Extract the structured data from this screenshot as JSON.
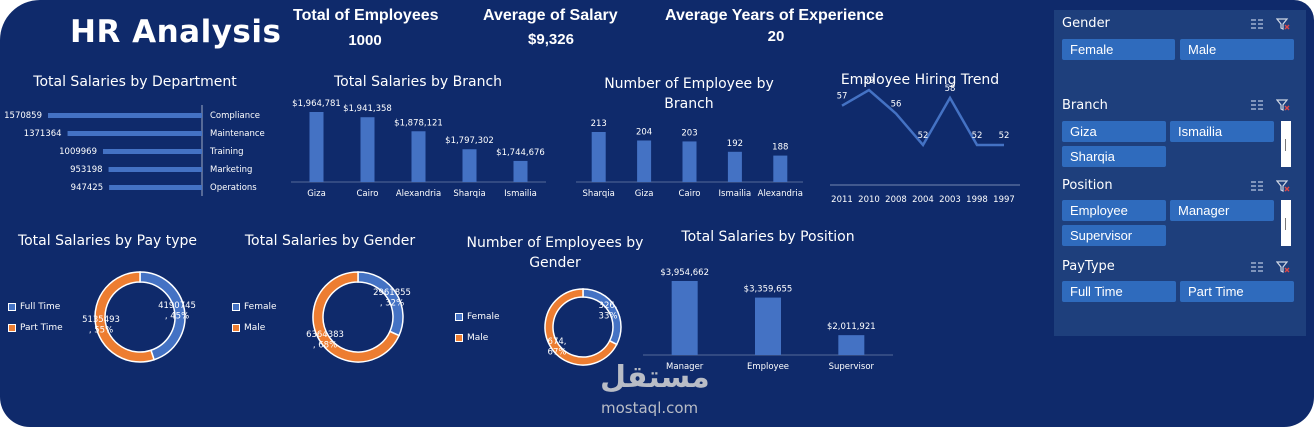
{
  "dashboard": {
    "title": "HR Analysis"
  },
  "kpis": [
    {
      "label": "Total of Employees",
      "value": "1000"
    },
    {
      "label": "Average of Salary",
      "value": "$9,326"
    },
    {
      "label": "Average Years of Experience",
      "value": "20"
    }
  ],
  "chart_data": [
    {
      "id": "dept",
      "type": "bar",
      "orientation": "horizontal",
      "title": "Total Salaries by Department",
      "categories": [
        "Compliance",
        "Maintenance",
        "Training",
        "Marketing",
        "Operations"
      ],
      "values": [
        1570859,
        1371364,
        1009969,
        953198,
        947425
      ],
      "labels": [
        "1570859",
        "1371364",
        "1009969",
        "953198",
        "947425"
      ]
    },
    {
      "id": "branch_sal",
      "type": "bar",
      "title": "Total Salaries by Branch",
      "categories": [
        "Giza",
        "Cairo",
        "Alexandria",
        "Sharqia",
        "Ismailia"
      ],
      "values": [
        1964781,
        1941358,
        1878121,
        1797302,
        1744676
      ],
      "labels": [
        "$1,964,781",
        "$1,941,358",
        "$1,878,121",
        "$1,797,302",
        "$1,744,676"
      ]
    },
    {
      "id": "branch_emp",
      "type": "bar",
      "title": "Number of Employee by Branch",
      "categories": [
        "Sharqia",
        "Giza",
        "Cairo",
        "Ismailia",
        "Alexandria"
      ],
      "values": [
        213,
        204,
        203,
        192,
        188
      ],
      "labels": [
        "213",
        "204",
        "203",
        "192",
        "188"
      ]
    },
    {
      "id": "hiring",
      "type": "line",
      "title": "Employee Hiring Trend",
      "categories": [
        "2011",
        "2010",
        "2008",
        "2004",
        "2003",
        "1998",
        "1997"
      ],
      "values": [
        57,
        59,
        56,
        52,
        58,
        52,
        52
      ],
      "labels": [
        "57",
        "59",
        "56",
        "52",
        "58",
        "52",
        "52"
      ]
    },
    {
      "id": "paytype",
      "type": "pie",
      "donut": true,
      "title": "Total Salaries by Pay type",
      "categories": [
        "Full Time",
        "Part Time"
      ],
      "values": [
        4190745,
        5135493
      ],
      "labels": [
        "4190745\n, 45%",
        "5135493\n, 55%"
      ]
    },
    {
      "id": "gender_sal",
      "type": "pie",
      "donut": true,
      "title": "Total Salaries by Gender",
      "categories": [
        "Female",
        "Male"
      ],
      "values": [
        2961855,
        6364383
      ],
      "labels": [
        "2961855\n, 32%",
        "6364383\n, 68%"
      ]
    },
    {
      "id": "gender_emp",
      "type": "pie",
      "donut": true,
      "title": "Number of Employees by Gender",
      "categories": [
        "Female",
        "Male"
      ],
      "values": [
        326,
        674
      ],
      "labels": [
        "326,\n33%",
        "674,\n67%"
      ]
    },
    {
      "id": "position",
      "type": "bar",
      "title": "Total Salaries by Position",
      "categories": [
        "Manager",
        "Employee",
        "Supervisor"
      ],
      "values": [
        3954662,
        3359655,
        2011921
      ],
      "labels": [
        "$3,954,662",
        "$3,359,655",
        "$2,011,921"
      ]
    }
  ],
  "colors": {
    "background": "#0f2a6b",
    "bar": "#4472c4",
    "orange": "#ed7d31",
    "slicer_panel": "#1e3f7c",
    "slicer_button": "#2f6bbd"
  },
  "slicers": [
    {
      "header": "Gender",
      "items": [
        "Female",
        "Male"
      ]
    },
    {
      "header": "Branch",
      "items": [
        "Giza",
        "Ismailia",
        "Sharqia"
      ]
    },
    {
      "header": "Position",
      "items": [
        "Employee",
        "Manager",
        "Supervisor"
      ]
    },
    {
      "header": "PayType",
      "items": [
        "Full Time",
        "Part Time"
      ]
    }
  ],
  "icons": {
    "multi_select": "multi-select-icon",
    "clear_filter": "clear-filter-icon"
  },
  "watermark": {
    "arabic": "مستقل",
    "latin": "mostaql.com"
  }
}
